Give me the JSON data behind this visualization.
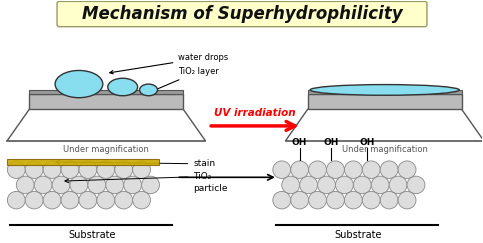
{
  "title": "Mechanism of Superhydrophilicity",
  "title_bg": "#FFFFCC",
  "title_fontsize": 12,
  "bg_color": "#FFFFFF",
  "water_drop_color": "#88DDEE",
  "water_drop_edge": "#333333",
  "particle_color": "#DDDDDD",
  "particle_edge": "#888888",
  "stain_color": "#CCAA00",
  "stain_edge": "#886600",
  "arrow_color": "#FF0000",
  "slab_color": "#BBBBBB",
  "slab_edge": "#555555",
  "tio2_color": "#999999",
  "uv_text": "UV irradiation",
  "under_mag": "Under magnification",
  "substrate_label": "Substrate",
  "water_drops_label": "water drops",
  "tio2_layer_label": "TiO₂ layer",
  "stain_label": "stain",
  "tio2_label": "TiO₂",
  "particle_label": "particle",
  "oh_labels": [
    "OH",
    "OH",
    "OH"
  ]
}
